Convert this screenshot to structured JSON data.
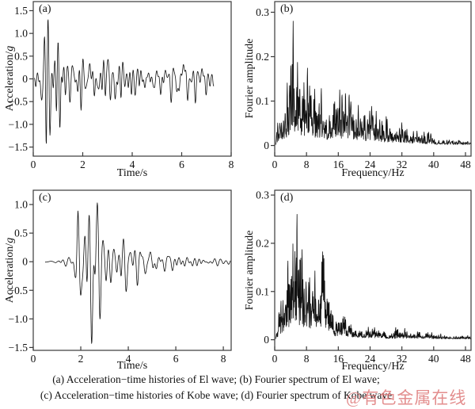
{
  "figure": {
    "caption_line1": "(a) Acceleration−time histories of El wave; (b) Fourier spectrum of El wave;",
    "caption_line2": "(c) Acceleration−time histories of Kobe wave; (d) Fourier spectrum of Kobe wave",
    "watermark": "@有色金属在线",
    "watermark_color": "#dd7373",
    "line_color": "#111111",
    "axis_color": "#3a3a3a",
    "background": "#ffffff"
  },
  "chart_data": [
    {
      "id": "a",
      "type": "line",
      "label": "(a)",
      "series_name": "El wave acceleration-time history",
      "xlabel": "Time/s",
      "ylabel_prefix": "Acceleration/",
      "ylabel_italic": "g",
      "xlim": [
        0,
        8
      ],
      "ylim": [
        -1.7,
        1.7
      ],
      "xticks": [
        0,
        2,
        4,
        6,
        8
      ],
      "xtick_labels": [
        "0",
        "2",
        "4",
        "6",
        "8"
      ],
      "yticks": [
        1.5,
        1.0,
        0.5,
        0,
        -0.5,
        -1.0,
        -1.5
      ],
      "ytick_labels": [
        "1.5",
        "1.0",
        "0.5",
        "0",
        "−0.5",
        "−1.0",
        "−1.5"
      ],
      "peak_positive": 1.3,
      "peak_negative": -1.42,
      "signal": {
        "kind": "time",
        "t_start": 0.05,
        "t_end": 7.3,
        "dt": 0.012,
        "freq_band": [
          1.2,
          10
        ],
        "components": 26,
        "seed": 20107,
        "envelope": [
          [
            0.05,
            0.05
          ],
          [
            0.2,
            0.3
          ],
          [
            0.35,
            0.9
          ],
          [
            0.5,
            1.4
          ],
          [
            0.7,
            1.2
          ],
          [
            0.9,
            1.05
          ],
          [
            1.1,
            0.95
          ],
          [
            1.3,
            0.75
          ],
          [
            1.5,
            0.45
          ],
          [
            1.8,
            0.35
          ],
          [
            2.05,
            0.6
          ],
          [
            2.3,
            0.55
          ],
          [
            2.6,
            0.4
          ],
          [
            2.85,
            0.7
          ],
          [
            3.1,
            0.5
          ],
          [
            3.5,
            0.45
          ],
          [
            3.9,
            0.4
          ],
          [
            4.3,
            0.42
          ],
          [
            4.7,
            0.35
          ],
          [
            5.1,
            0.32
          ],
          [
            5.5,
            0.3
          ],
          [
            5.9,
            0.45
          ],
          [
            6.2,
            0.55
          ],
          [
            6.5,
            0.35
          ],
          [
            6.9,
            0.28
          ],
          [
            7.3,
            0.18
          ]
        ]
      }
    },
    {
      "id": "b",
      "type": "line",
      "label": "(b)",
      "series_name": "Fourier spectrum of El wave",
      "xlabel": "Frequency/Hz",
      "ylabel": "Fourier amplitude",
      "xlim": [
        0,
        49.4
      ],
      "ylim": [
        -0.024,
        0.324
      ],
      "xticks": [
        0,
        8,
        16,
        24,
        32,
        40,
        48
      ],
      "xtick_labels": [
        "0",
        "8",
        "16",
        "24",
        "32",
        "40",
        "48"
      ],
      "yticks": [
        0,
        0.1,
        0.2,
        0.3
      ],
      "ytick_labels": [
        "0",
        "0.1",
        "0.2",
        "0.3"
      ],
      "peak_value": 0.28,
      "signal": {
        "kind": "spectrum",
        "f_start": 0.15,
        "f_end": 49.4,
        "df": 0.06,
        "osc_band": [
          0.6,
          3.2
        ],
        "components": 14,
        "seed": 31415,
        "floor": 0.002,
        "envelope": [
          [
            0.2,
            0.015
          ],
          [
            0.8,
            0.06
          ],
          [
            1.5,
            0.1
          ],
          [
            2.2,
            0.12
          ],
          [
            3,
            0.17
          ],
          [
            4,
            0.24
          ],
          [
            4.6,
            0.28
          ],
          [
            5.4,
            0.2
          ],
          [
            6,
            0.27
          ],
          [
            7,
            0.2
          ],
          [
            7.6,
            0.19
          ],
          [
            8.6,
            0.27
          ],
          [
            9.4,
            0.2
          ],
          [
            10.5,
            0.15
          ],
          [
            11.5,
            0.16
          ],
          [
            12.5,
            0.13
          ],
          [
            14,
            0.12
          ],
          [
            15.6,
            0.18
          ],
          [
            17,
            0.13
          ],
          [
            18.5,
            0.15
          ],
          [
            20,
            0.12
          ],
          [
            21.5,
            0.13
          ],
          [
            23,
            0.09
          ],
          [
            24.5,
            0.13
          ],
          [
            26,
            0.08
          ],
          [
            27.5,
            0.07
          ],
          [
            29,
            0.065
          ],
          [
            31,
            0.07
          ],
          [
            33,
            0.06
          ],
          [
            35,
            0.045
          ],
          [
            37,
            0.04
          ],
          [
            39,
            0.03
          ],
          [
            41,
            0.022
          ],
          [
            44,
            0.018
          ],
          [
            47,
            0.015
          ],
          [
            49.4,
            0.012
          ]
        ]
      }
    },
    {
      "id": "c",
      "type": "line",
      "label": "(c)",
      "series_name": "Kobe wave acceleration-time history",
      "xlabel": "Time/s",
      "ylabel_prefix": "Acceleration/",
      "ylabel_italic": "g",
      "xlim": [
        0,
        8.33
      ],
      "ylim": [
        -1.55,
        1.25
      ],
      "xticks": [
        0,
        2,
        4,
        6,
        8
      ],
      "xtick_labels": [
        "0",
        "2",
        "4",
        "6",
        "8"
      ],
      "yticks": [
        1.0,
        0.5,
        0,
        -0.5,
        -1.0,
        -1.5
      ],
      "ytick_labels": [
        "1.0",
        "0.5",
        "0",
        "−0.5",
        "−1.0",
        "−1.5"
      ],
      "peak_positive": 1.03,
      "peak_negative": -1.43,
      "signal": {
        "kind": "time",
        "t_start": 0.5,
        "t_end": 8.3,
        "dt": 0.012,
        "freq_band": [
          1.0,
          6.5
        ],
        "components": 22,
        "seed": 27182,
        "envelope": [
          [
            0.5,
            0.008
          ],
          [
            1.05,
            0.015
          ],
          [
            1.2,
            0.07
          ],
          [
            1.45,
            0.1
          ],
          [
            1.65,
            0.1
          ],
          [
            1.78,
            0.3
          ],
          [
            1.88,
            1.0
          ],
          [
            2.0,
            1.1
          ],
          [
            2.12,
            1.43
          ],
          [
            2.3,
            1.15
          ],
          [
            2.5,
            1.3
          ],
          [
            2.65,
            1.15
          ],
          [
            2.8,
            1.1
          ],
          [
            2.95,
            1.0
          ],
          [
            3.1,
            0.8
          ],
          [
            3.3,
            0.5
          ],
          [
            3.6,
            0.4
          ],
          [
            3.9,
            0.33
          ],
          [
            4.2,
            0.3
          ],
          [
            4.5,
            0.3
          ],
          [
            4.8,
            0.22
          ],
          [
            5.1,
            0.3
          ],
          [
            5.4,
            0.18
          ],
          [
            5.7,
            0.14
          ],
          [
            6.0,
            0.1
          ],
          [
            6.5,
            0.08
          ],
          [
            7.0,
            0.07
          ],
          [
            7.6,
            0.06
          ],
          [
            8.3,
            0.05
          ]
        ]
      }
    },
    {
      "id": "d",
      "type": "line",
      "label": "(d)",
      "series_name": "Fourier spectrum of Kobe wave",
      "xlabel": "Frequency/Hz",
      "ylabel": "Fourier amplitude",
      "xlim": [
        0,
        49.4
      ],
      "ylim": [
        -0.022,
        0.31
      ],
      "xticks": [
        0,
        8,
        16,
        24,
        32,
        40,
        48
      ],
      "xtick_labels": [
        "0",
        "8",
        "16",
        "24",
        "32",
        "40",
        "48"
      ],
      "yticks": [
        0,
        0.1,
        0.2,
        0.3
      ],
      "ytick_labels": [
        "0",
        "0.1",
        "0.2",
        "0.3"
      ],
      "peak_value": 0.26,
      "signal": {
        "kind": "spectrum",
        "f_start": 0.15,
        "f_end": 49.4,
        "df": 0.06,
        "osc_band": [
          0.6,
          3.2
        ],
        "components": 14,
        "seed": 16180,
        "floor": 0.002,
        "envelope": [
          [
            0.2,
            0.006
          ],
          [
            1,
            0.05
          ],
          [
            1.8,
            0.1
          ],
          [
            2.6,
            0.16
          ],
          [
            3.4,
            0.18
          ],
          [
            4.2,
            0.23
          ],
          [
            5,
            0.2
          ],
          [
            5.8,
            0.26
          ],
          [
            6.6,
            0.18
          ],
          [
            7.4,
            0.16
          ],
          [
            8.4,
            0.2
          ],
          [
            9.2,
            0.16
          ],
          [
            10,
            0.19
          ],
          [
            11,
            0.16
          ],
          [
            11.8,
            0.21
          ],
          [
            12.6,
            0.16
          ],
          [
            13.4,
            0.1
          ],
          [
            14.2,
            0.08
          ],
          [
            15,
            0.06
          ],
          [
            16,
            0.05
          ],
          [
            17,
            0.05
          ],
          [
            18,
            0.045
          ],
          [
            19,
            0.05
          ],
          [
            20,
            0.035
          ],
          [
            21.5,
            0.03
          ],
          [
            23,
            0.028
          ],
          [
            24.5,
            0.03
          ],
          [
            26,
            0.025
          ],
          [
            28,
            0.02
          ],
          [
            30,
            0.018
          ],
          [
            32,
            0.022
          ],
          [
            34,
            0.018
          ],
          [
            36,
            0.022
          ],
          [
            38,
            0.015
          ],
          [
            40,
            0.012
          ],
          [
            42,
            0.01
          ],
          [
            44,
            0.009
          ],
          [
            46,
            0.008
          ],
          [
            48,
            0.007
          ],
          [
            49.4,
            0.006
          ]
        ]
      }
    }
  ]
}
